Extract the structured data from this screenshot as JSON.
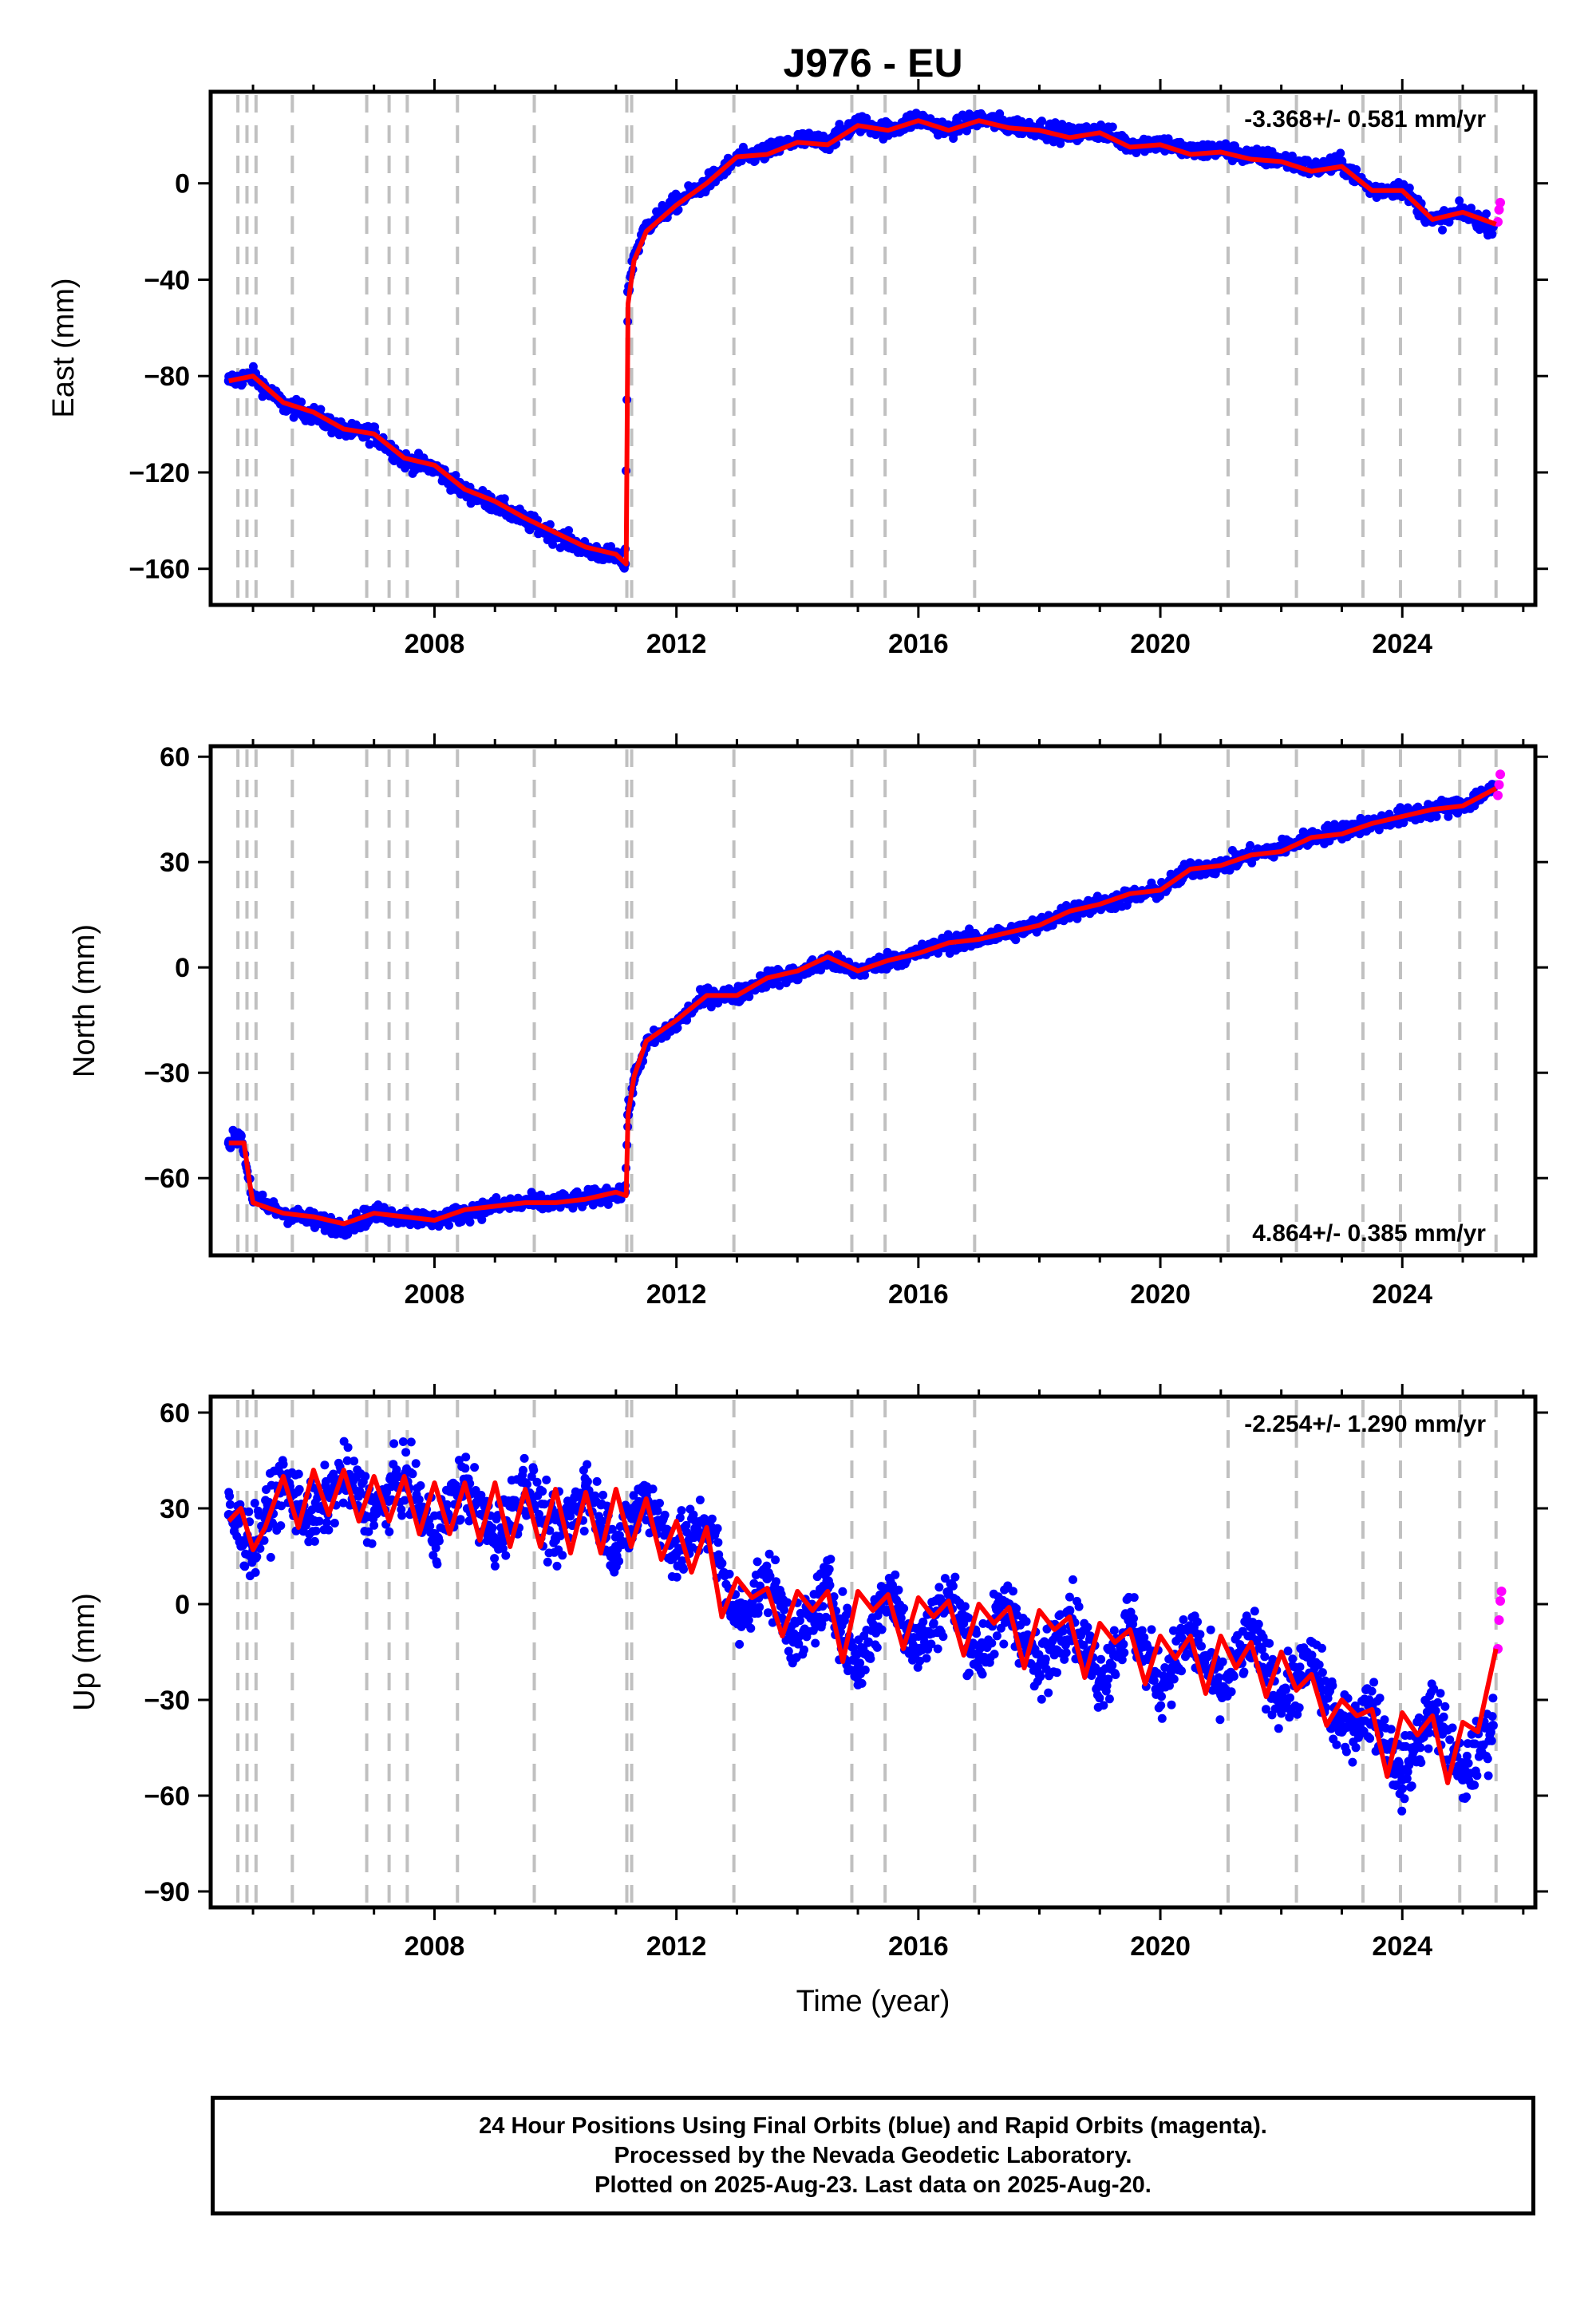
{
  "figure": {
    "title": "J976 - EU",
    "x_label": "Time (year)"
  },
  "footer": {
    "line1": "24 Hour Positions Using Final Orbits (blue) and Rapid Orbits (magenta).",
    "line2": "Processed by the Nevada Geodetic Laboratory.",
    "line3": "Plotted on 2025-Aug-23. Last data on 2025-Aug-20."
  },
  "colors": {
    "final_orbits": "#0000ff",
    "rapid_orbits": "#ff00ff",
    "model": "#ff0000",
    "event_lines": "#c0c0c0"
  },
  "chart_data": [
    {
      "type": "scatter",
      "panel": "east",
      "ylabel": "East (mm)",
      "xlim": [
        2004.3,
        2026.2
      ],
      "ylim": [
        -175,
        38
      ],
      "xticks": [
        2008,
        2012,
        2016,
        2020,
        2024
      ],
      "xtick_labels": [
        "2008",
        "2012",
        "2016",
        "2020",
        "2024"
      ],
      "yticks": [
        -160,
        -120,
        -80,
        -40,
        0
      ],
      "ytick_labels": [
        "−160",
        "−120",
        "−80",
        "−40",
        "0"
      ],
      "rate_label": "-3.368+/- 0.581 mm/yr",
      "rate_position": "top-right",
      "event_lines": [
        2004.75,
        2004.9,
        2005.05,
        2005.65,
        2006.88,
        2007.25,
        2007.55,
        2008.38,
        2009.65,
        2011.18,
        2011.26,
        2012.95,
        2014.9,
        2015.45,
        2016.93,
        2021.12,
        2022.25,
        2023.35,
        2023.97,
        2024.95,
        2025.55
      ],
      "series": [
        {
          "name": "Final Orbits",
          "style": "points",
          "x": [
            2004.6,
            2005.0,
            2005.5,
            2006.0,
            2006.5,
            2007.0,
            2007.5,
            2008.0,
            2008.5,
            2009.0,
            2009.5,
            2010.0,
            2010.5,
            2011.0,
            2011.15,
            2011.2,
            2011.3,
            2011.5,
            2012.0,
            2012.5,
            2013.0,
            2013.5,
            2014.0,
            2014.5,
            2015.0,
            2015.5,
            2016.0,
            2016.5,
            2017.0,
            2017.5,
            2018.0,
            2018.5,
            2019.0,
            2019.5,
            2020.0,
            2020.5,
            2021.0,
            2021.5,
            2022.0,
            2022.5,
            2023.0,
            2023.5,
            2024.0,
            2024.5,
            2025.0,
            2025.5
          ],
          "y": [
            -82,
            -80,
            -92,
            -96,
            -103,
            -104,
            -115,
            -118,
            -128,
            -133,
            -140,
            -146,
            -152,
            -155,
            -158,
            -45,
            -30,
            -18,
            -8,
            0,
            10,
            13,
            18,
            17,
            25,
            22,
            27,
            22,
            27,
            24,
            23,
            20,
            22,
            16,
            17,
            13,
            14,
            11,
            10,
            6,
            8,
            -3,
            -2,
            -16,
            -12,
            -18
          ]
        },
        {
          "name": "Rapid Orbits",
          "style": "points",
          "x": [
            2025.58,
            2025.6,
            2025.62
          ],
          "y": [
            -16,
            -11,
            -8
          ]
        },
        {
          "name": "Model",
          "style": "line",
          "x": [
            2004.6,
            2005.0,
            2005.5,
            2006.0,
            2006.5,
            2007.0,
            2007.5,
            2008.0,
            2008.5,
            2009.0,
            2009.5,
            2010.0,
            2010.5,
            2011.0,
            2011.17,
            2011.2,
            2011.3,
            2011.5,
            2012.0,
            2012.5,
            2013.0,
            2013.5,
            2014.0,
            2014.5,
            2015.0,
            2015.5,
            2016.0,
            2016.5,
            2017.0,
            2017.5,
            2018.0,
            2018.5,
            2019.0,
            2019.5,
            2020.0,
            2020.5,
            2021.0,
            2021.5,
            2022.0,
            2022.5,
            2023.0,
            2023.5,
            2024.0,
            2024.5,
            2025.0,
            2025.55
          ],
          "y": [
            -82,
            -80,
            -91,
            -95,
            -102,
            -104,
            -114,
            -117,
            -127,
            -132,
            -139,
            -145,
            -151,
            -154,
            -158,
            -50,
            -32,
            -20,
            -9,
            0,
            11,
            12,
            17,
            16,
            24,
            22,
            26,
            22,
            26,
            23,
            22,
            19,
            21,
            15,
            16,
            12,
            13,
            10,
            9,
            5,
            7,
            -3,
            -3,
            -15,
            -12,
            -17
          ]
        }
      ]
    },
    {
      "type": "scatter",
      "panel": "north",
      "ylabel": "North (mm)",
      "xlim": [
        2004.3,
        2026.2
      ],
      "ylim": [
        -82,
        63
      ],
      "xticks": [
        2008,
        2012,
        2016,
        2020,
        2024
      ],
      "xtick_labels": [
        "2008",
        "2012",
        "2016",
        "2020",
        "2024"
      ],
      "yticks": [
        -60,
        -30,
        0,
        30,
        60
      ],
      "ytick_labels": [
        "−60",
        "−30",
        "0",
        "30",
        "60"
      ],
      "rate_label": "4.864+/- 0.385 mm/yr",
      "rate_position": "bottom-right",
      "event_lines": [
        2004.75,
        2004.9,
        2005.05,
        2005.65,
        2006.88,
        2007.25,
        2007.55,
        2008.38,
        2009.65,
        2011.18,
        2011.26,
        2012.95,
        2014.9,
        2015.45,
        2016.93,
        2021.12,
        2022.25,
        2023.35,
        2023.97,
        2024.95,
        2025.55
      ],
      "series": [
        {
          "name": "Final Orbits",
          "style": "points",
          "x": [
            2004.6,
            2004.8,
            2005.0,
            2005.5,
            2006.0,
            2006.5,
            2007.0,
            2007.5,
            2008.0,
            2008.5,
            2009.0,
            2009.5,
            2010.0,
            2010.5,
            2011.0,
            2011.15,
            2011.2,
            2011.3,
            2011.5,
            2012.0,
            2012.5,
            2013.0,
            2013.5,
            2014.0,
            2014.5,
            2015.0,
            2015.5,
            2016.0,
            2016.5,
            2017.0,
            2017.5,
            2018.0,
            2018.5,
            2019.0,
            2019.5,
            2020.0,
            2020.5,
            2021.0,
            2021.5,
            2022.0,
            2022.5,
            2023.0,
            2023.5,
            2024.0,
            2024.5,
            2025.0,
            2025.5
          ],
          "y": [
            -50,
            -48,
            -66,
            -70,
            -72,
            -74,
            -70,
            -71,
            -72,
            -70,
            -68,
            -67,
            -67,
            -66,
            -64,
            -64,
            -42,
            -32,
            -22,
            -16,
            -8,
            -8,
            -3,
            -2,
            2,
            -1,
            2,
            4,
            7,
            8,
            10,
            12,
            16,
            18,
            20,
            22,
            28,
            29,
            32,
            34,
            37,
            39,
            41,
            43,
            45,
            46,
            51
          ]
        },
        {
          "name": "Rapid Orbits",
          "style": "points",
          "x": [
            2025.58,
            2025.6,
            2025.62
          ],
          "y": [
            49,
            52,
            55
          ]
        },
        {
          "name": "Model",
          "style": "line",
          "x": [
            2004.6,
            2004.85,
            2004.95,
            2005.0,
            2005.5,
            2006.0,
            2006.5,
            2007.0,
            2007.5,
            2008.0,
            2008.5,
            2009.0,
            2009.5,
            2010.0,
            2010.5,
            2011.0,
            2011.17,
            2011.2,
            2011.3,
            2011.5,
            2012.0,
            2012.5,
            2013.0,
            2013.5,
            2014.0,
            2014.5,
            2015.0,
            2015.5,
            2016.0,
            2016.5,
            2017.0,
            2017.5,
            2018.0,
            2018.5,
            2019.0,
            2019.5,
            2020.0,
            2020.5,
            2021.0,
            2021.5,
            2022.0,
            2022.5,
            2023.0,
            2023.5,
            2024.0,
            2024.5,
            2025.0,
            2025.55
          ],
          "y": [
            -50,
            -50,
            -62,
            -67,
            -70,
            -71,
            -73,
            -70,
            -71,
            -72,
            -69,
            -68,
            -67,
            -67,
            -66,
            -64,
            -65,
            -42,
            -31,
            -21,
            -15,
            -8,
            -8,
            -3,
            -1,
            3,
            -1,
            2,
            4,
            7,
            8,
            10,
            12,
            16,
            18,
            21,
            22,
            28,
            29,
            32,
            33,
            37,
            38,
            41,
            43,
            45,
            46,
            51
          ]
        }
      ]
    },
    {
      "type": "scatter",
      "panel": "up",
      "ylabel": "Up (mm)",
      "xlim": [
        2004.3,
        2026.2
      ],
      "ylim": [
        -95,
        65
      ],
      "xticks": [
        2008,
        2012,
        2016,
        2020,
        2024
      ],
      "xtick_labels": [
        "2008",
        "2012",
        "2016",
        "2020",
        "2024"
      ],
      "yticks": [
        -90,
        -60,
        -30,
        0,
        30,
        60
      ],
      "ytick_labels": [
        "−90",
        "−60",
        "−30",
        "0",
        "30",
        "60"
      ],
      "rate_label": "-2.254+/- 1.290 mm/yr",
      "rate_position": "top-right",
      "event_lines": [
        2004.75,
        2004.9,
        2005.05,
        2005.65,
        2006.88,
        2007.25,
        2007.55,
        2008.38,
        2009.65,
        2011.18,
        2011.26,
        2012.95,
        2014.9,
        2015.45,
        2016.93,
        2021.12,
        2022.25,
        2023.35,
        2023.97,
        2024.95,
        2025.55
      ],
      "series": [
        {
          "name": "Final Orbits",
          "style": "points",
          "x": [
            2004.6,
            2005.0,
            2005.5,
            2006.0,
            2006.5,
            2007.0,
            2007.5,
            2008.0,
            2008.5,
            2009.0,
            2009.5,
            2010.0,
            2010.5,
            2011.0,
            2011.5,
            2012.0,
            2012.5,
            2013.0,
            2013.5,
            2014.0,
            2014.5,
            2015.0,
            2015.5,
            2016.0,
            2016.5,
            2017.0,
            2017.5,
            2018.0,
            2018.5,
            2019.0,
            2019.5,
            2020.0,
            2020.5,
            2021.0,
            2021.5,
            2022.0,
            2022.5,
            2023.0,
            2023.5,
            2024.0,
            2024.5,
            2025.0,
            2025.5
          ],
          "y": [
            28,
            18,
            38,
            26,
            40,
            28,
            40,
            22,
            38,
            20,
            38,
            20,
            37,
            18,
            34,
            16,
            26,
            -5,
            8,
            -12,
            5,
            -20,
            5,
            -14,
            3,
            -16,
            0,
            -22,
            -2,
            -24,
            -5,
            -26,
            -9,
            -28,
            -10,
            -30,
            -18,
            -40,
            -32,
            -55,
            -32,
            -55,
            -38
          ]
        },
        {
          "name": "Rapid Orbits",
          "style": "points",
          "x": [
            2025.58,
            2025.6,
            2025.62,
            2025.64
          ],
          "y": [
            -14,
            -5,
            1,
            4
          ]
        },
        {
          "name": "Model",
          "style": "line",
          "x": [
            2004.6,
            2004.8,
            2005.0,
            2005.2,
            2005.5,
            2005.75,
            2006.0,
            2006.25,
            2006.5,
            2006.75,
            2007.0,
            2007.25,
            2007.5,
            2007.75,
            2008.0,
            2008.25,
            2008.5,
            2008.75,
            2009.0,
            2009.25,
            2009.5,
            2009.75,
            2010.0,
            2010.25,
            2010.5,
            2010.75,
            2011.0,
            2011.25,
            2011.5,
            2011.75,
            2012.0,
            2012.25,
            2012.5,
            2012.75,
            2013.0,
            2013.25,
            2013.5,
            2013.75,
            2014.0,
            2014.25,
            2014.5,
            2014.75,
            2015.0,
            2015.25,
            2015.5,
            2015.75,
            2016.0,
            2016.25,
            2016.5,
            2016.75,
            2017.0,
            2017.25,
            2017.5,
            2017.75,
            2018.0,
            2018.25,
            2018.5,
            2018.75,
            2019.0,
            2019.25,
            2019.5,
            2019.75,
            2020.0,
            2020.25,
            2020.5,
            2020.75,
            2021.0,
            2021.25,
            2021.5,
            2021.75,
            2022.0,
            2022.25,
            2022.5,
            2022.75,
            2023.0,
            2023.25,
            2023.5,
            2023.75,
            2024.0,
            2024.25,
            2024.5,
            2024.75,
            2025.0,
            2025.25,
            2025.55
          ],
          "y": [
            26,
            30,
            17,
            24,
            40,
            24,
            42,
            28,
            42,
            26,
            40,
            26,
            40,
            22,
            38,
            22,
            38,
            20,
            38,
            18,
            36,
            18,
            36,
            16,
            35,
            16,
            36,
            18,
            33,
            14,
            26,
            10,
            24,
            -4,
            8,
            2,
            5,
            -10,
            4,
            -2,
            4,
            -18,
            4,
            -2,
            3,
            -14,
            2,
            -4,
            1,
            -16,
            0,
            -6,
            -1,
            -20,
            -2,
            -8,
            -4,
            -23,
            -6,
            -12,
            -8,
            -25,
            -10,
            -17,
            -10,
            -28,
            -10,
            -20,
            -12,
            -29,
            -15,
            -27,
            -22,
            -38,
            -30,
            -35,
            -33,
            -54,
            -34,
            -41,
            -35,
            -56,
            -37,
            -40,
            -14
          ]
        }
      ]
    }
  ]
}
